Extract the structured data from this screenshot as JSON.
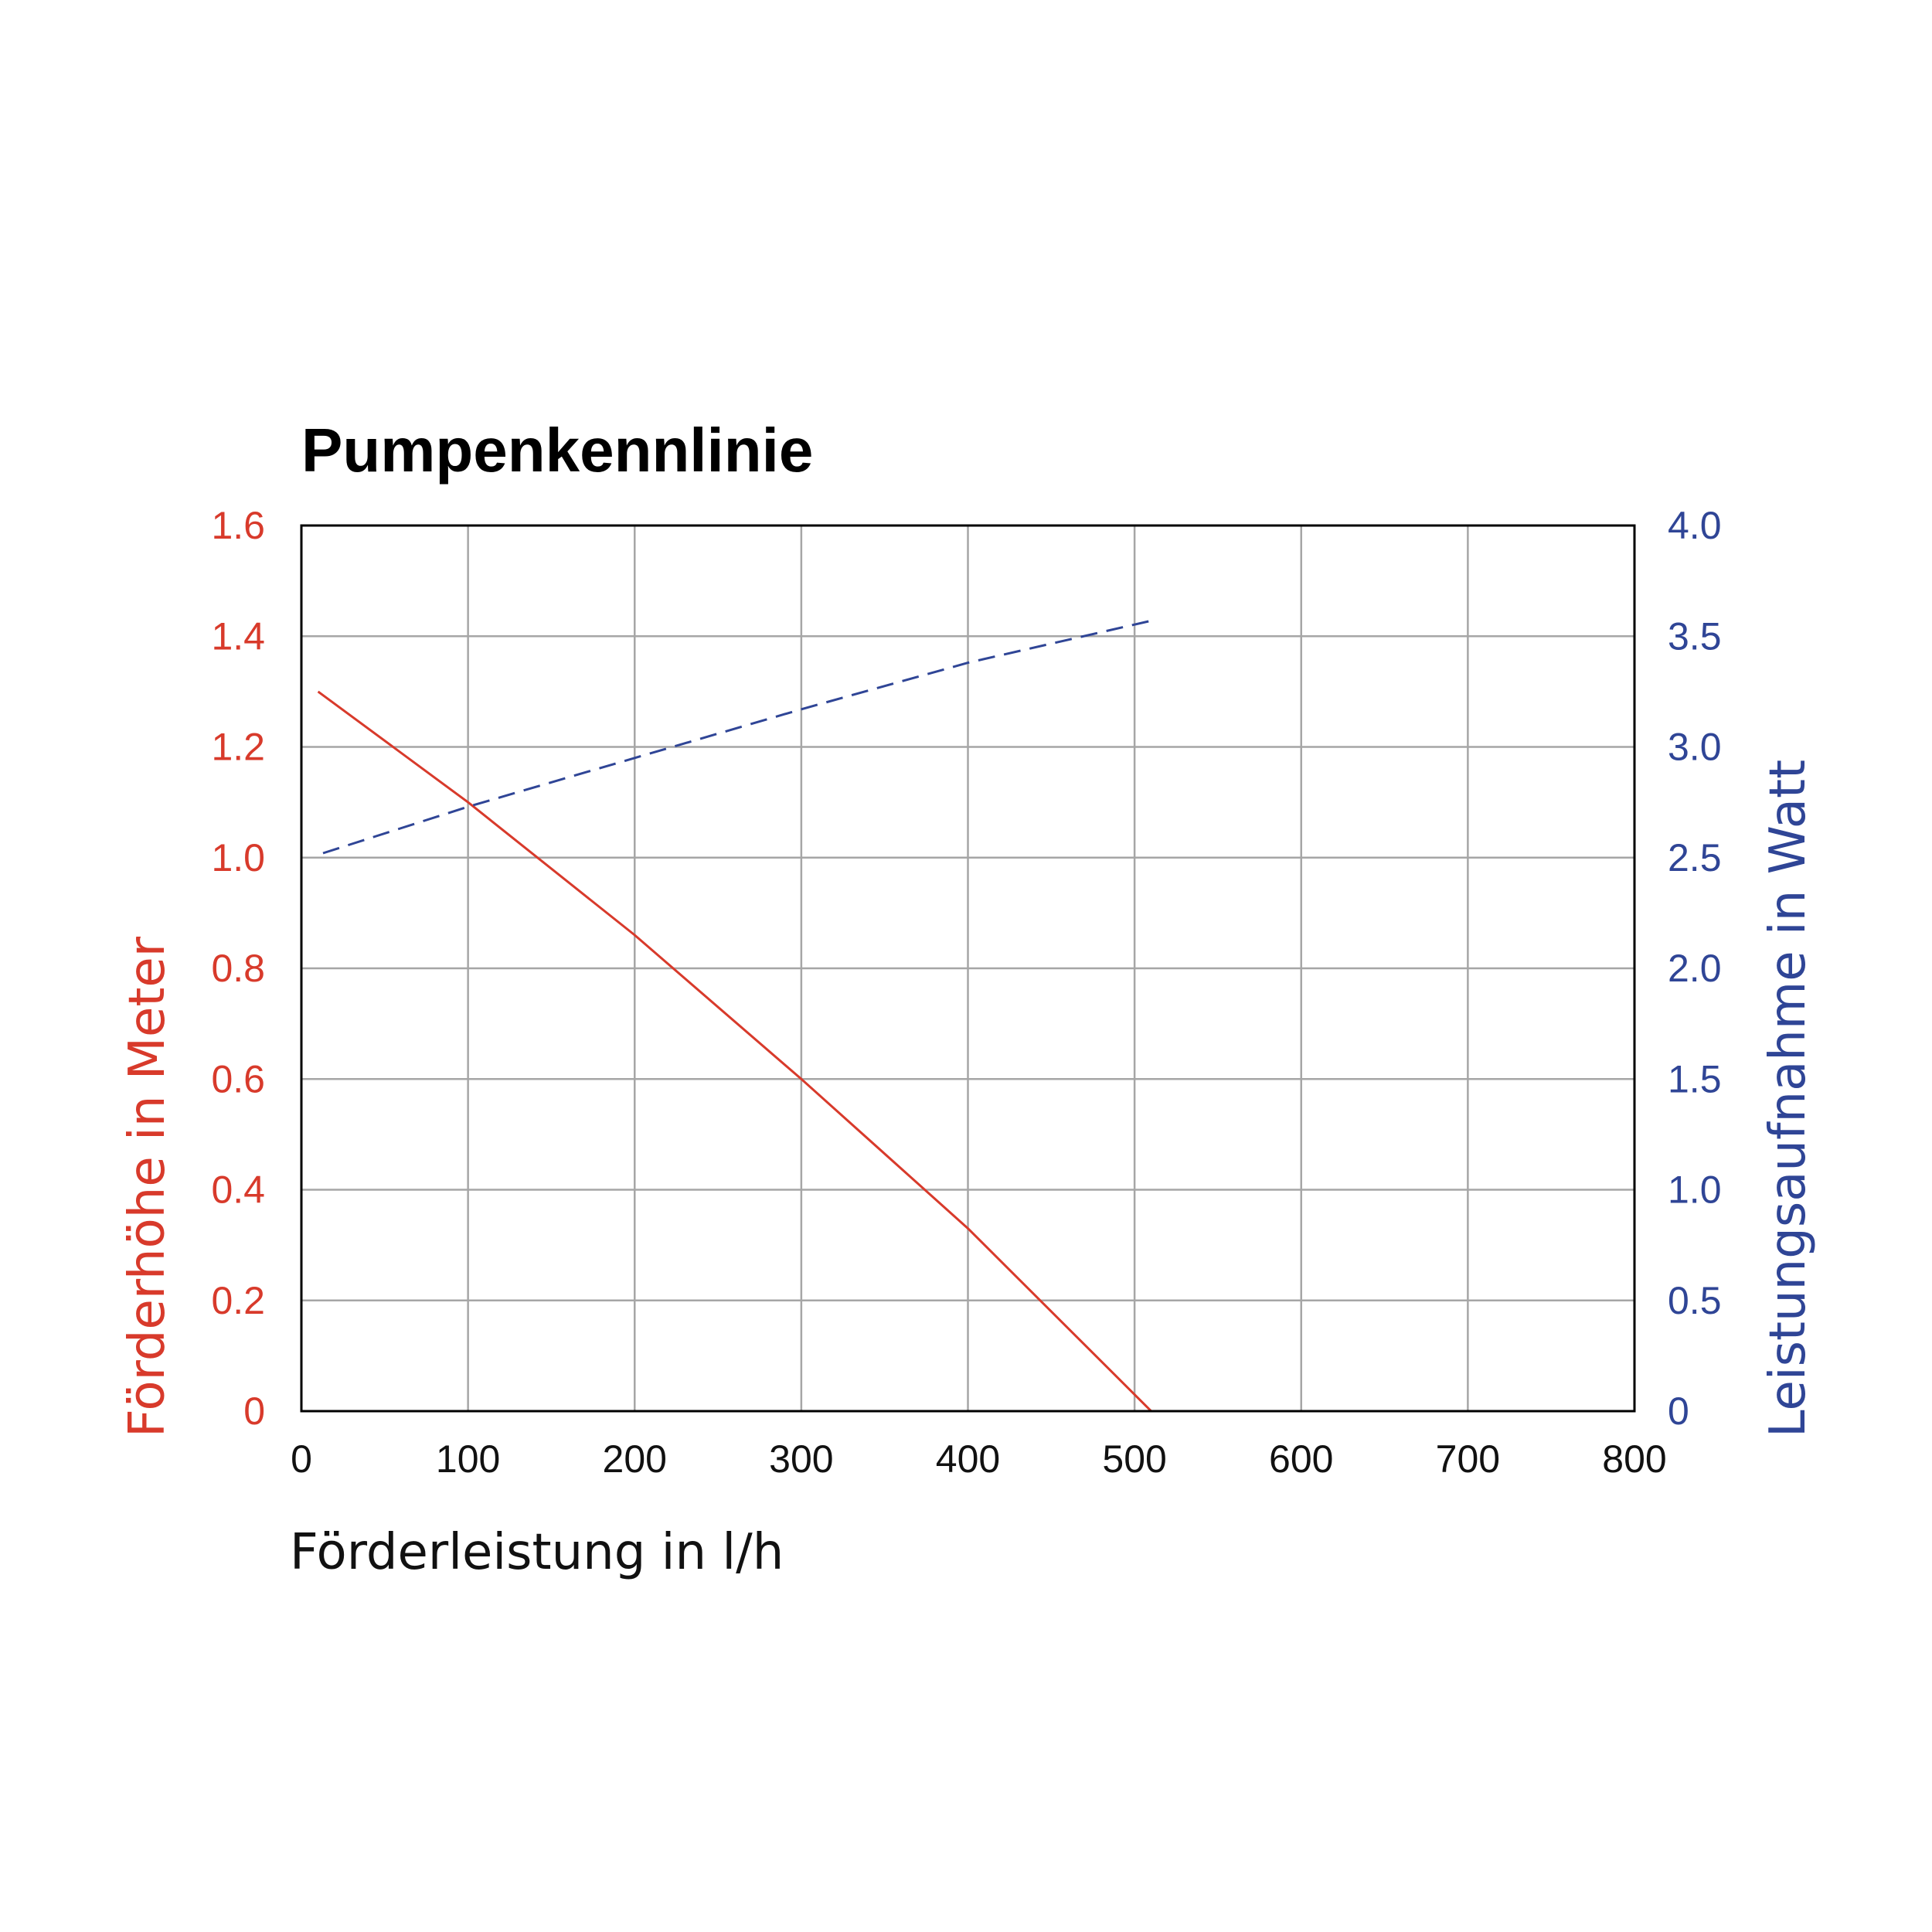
{
  "chart_data": {
    "type": "line",
    "title": "Pumpenkennlinie",
    "xlabel": "Förderleistung in l/h",
    "ylabel_left": "Förderhöhe in Meter",
    "ylabel_right": "Leistungsaufnahme in Watt",
    "xlim": [
      0,
      800
    ],
    "ylim_left": [
      0,
      1.6
    ],
    "ylim_right": [
      0,
      4.0
    ],
    "x_ticks": [
      "0",
      "100",
      "200",
      "300",
      "400",
      "500",
      "600",
      "700",
      "800"
    ],
    "y_left_ticks": [
      "0",
      "0.2",
      "0.4",
      "0.6",
      "0.8",
      "1.0",
      "1.2",
      "1.4",
      "1.6"
    ],
    "y_right_ticks": [
      "0",
      "0.5",
      "1.0",
      "1.5",
      "2.0",
      "2.5",
      "3.0",
      "3.5",
      "4.0"
    ],
    "grid": true,
    "series": [
      {
        "axis": "left",
        "style": "solid",
        "color": "#d83a2b",
        "x": [
          10,
          100,
          200,
          300,
          400,
          510
        ],
        "y": [
          1.3,
          1.1,
          0.86,
          0.6,
          0.33,
          0.0
        ]
      },
      {
        "axis": "right",
        "style": "dashed",
        "color": "#2f4596",
        "x": [
          13,
          100,
          200,
          300,
          400,
          510
        ],
        "y": [
          2.52,
          2.73,
          2.95,
          3.17,
          3.38,
          3.57
        ]
      }
    ]
  },
  "colors": {
    "left_axis": "#d83a2b",
    "right_axis": "#2f4596",
    "grid": "#a6a6a6",
    "frame": "#000000"
  }
}
